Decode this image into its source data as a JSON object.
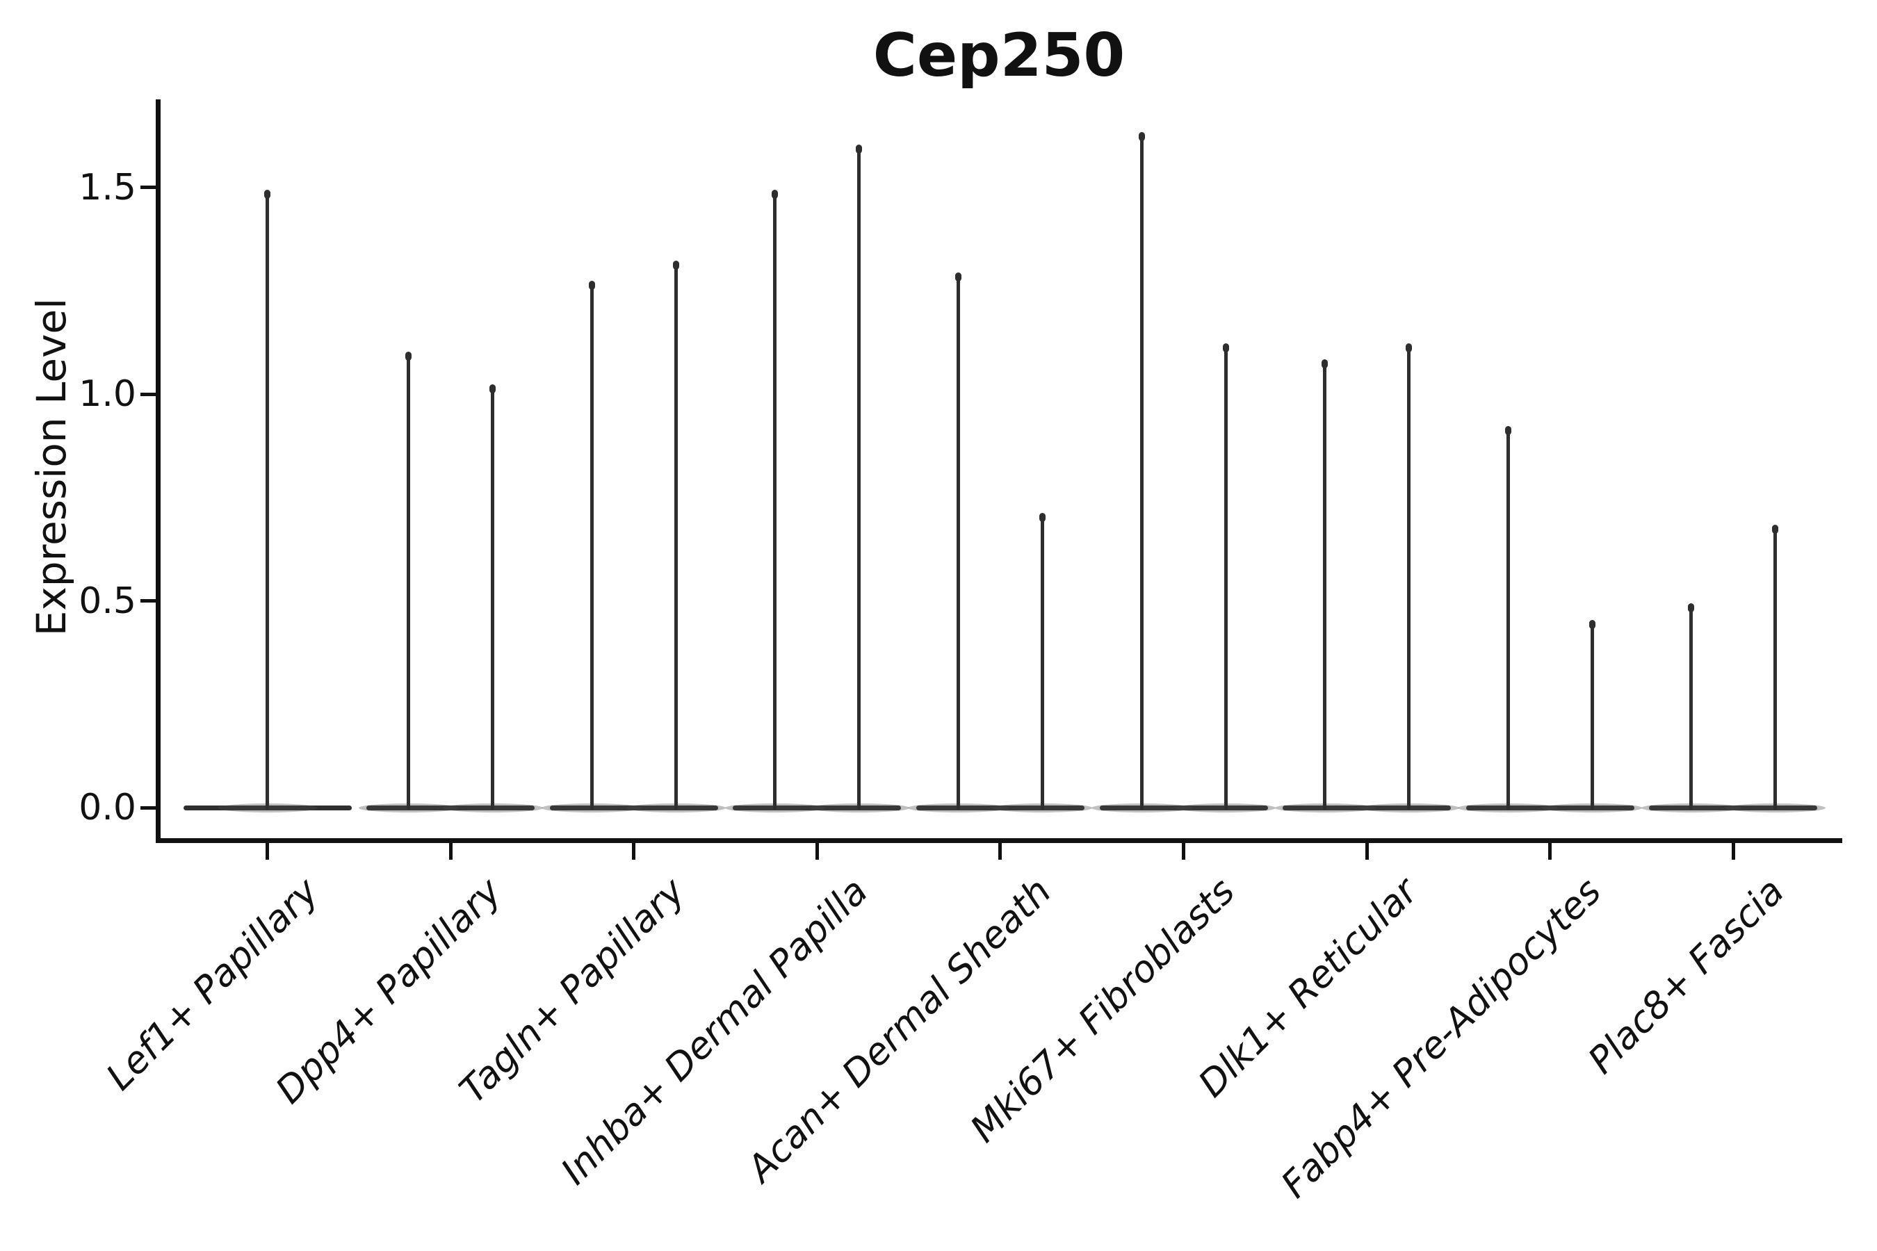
{
  "figure": {
    "title": "Cep250",
    "ylabel": "Expression Level"
  },
  "colors": {
    "violin_stroke": "#2e2e2e",
    "axis": "#111111",
    "text": "#111111",
    "background": "#ffffff"
  },
  "chart_data": {
    "type": "violin",
    "title": "Cep250",
    "xlabel": "",
    "ylabel": "Expression Level",
    "ylim": [
      -0.08,
      1.71
    ],
    "yticks": [
      0.0,
      0.5,
      1.0,
      1.5
    ],
    "grid": false,
    "legend": false,
    "categories": [
      "Lef1+ Papillary",
      "Dpp4+ Papillary",
      "Tagln+ Papillary",
      "Inhba+ Dermal Papilla",
      "Acan+ Dermal Sheath",
      "Mki67+ Fibroblasts",
      "Dlk1+ Reticular",
      "Fabp4+ Pre-Adipocytes",
      "Plac8+ Fascia"
    ],
    "violins_per_category": [
      1,
      2,
      2,
      2,
      2,
      2,
      2,
      2,
      2
    ],
    "maxima": [
      [
        1.49
      ],
      [
        1.1,
        1.02
      ],
      [
        1.27,
        1.32
      ],
      [
        1.49,
        1.6
      ],
      [
        1.29,
        0.71
      ],
      [
        1.63,
        1.12
      ],
      [
        1.08,
        1.12
      ],
      [
        0.92,
        0.45
      ],
      [
        0.49,
        0.68
      ]
    ],
    "distribution_note": "Each violin is a flat pancake at expression 0 (most cells non-expressing) with a thin vertical density spike reaching the category maximum."
  }
}
